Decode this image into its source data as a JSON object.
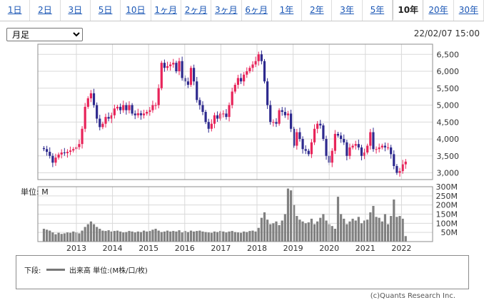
{
  "tabs": [
    {
      "label": "1日",
      "active": false
    },
    {
      "label": "2日",
      "active": false
    },
    {
      "label": "3日",
      "active": false
    },
    {
      "label": "5日",
      "active": false
    },
    {
      "label": "10日",
      "active": false
    },
    {
      "label": "1ヶ月",
      "active": false
    },
    {
      "label": "2ヶ月",
      "active": false
    },
    {
      "label": "3ヶ月",
      "active": false
    },
    {
      "label": "6ヶ月",
      "active": false
    },
    {
      "label": "1年",
      "active": false
    },
    {
      "label": "2年",
      "active": false
    },
    {
      "label": "3年",
      "active": false
    },
    {
      "label": "5年",
      "active": false
    },
    {
      "label": "10年",
      "active": true
    },
    {
      "label": "20年",
      "active": false
    },
    {
      "label": "30年",
      "active": false
    }
  ],
  "period_select": {
    "value": "月足"
  },
  "timestamp": "22/02/07 15:00",
  "volume_unit_label": "単位: M",
  "legend": {
    "title": "下段:",
    "label": "出来高 単位:(M株/口/枚)"
  },
  "copyright": "(c)Quants Research Inc.",
  "colors": {
    "up": "#e8245a",
    "down": "#2e2a8e",
    "volume": "#808080",
    "grid": "#d9d9d9"
  },
  "chart_data": [
    {
      "type": "candlestick",
      "ylim": [
        2800,
        6800
      ],
      "y_ticks": [
        3000,
        3500,
        4000,
        4500,
        5000,
        5500,
        6000,
        6500
      ],
      "y_tick_labels": [
        "3,000",
        "3,500",
        "4,000",
        "4,500",
        "5,000",
        "5,500",
        "6,000",
        "6,500"
      ],
      "x_tick_labels": [
        "2013",
        "2014",
        "2015",
        "2016",
        "2017",
        "2018",
        "2019",
        "2020",
        "2021",
        "2022"
      ],
      "grid": true,
      "close": [
        3700,
        3620,
        3500,
        3300,
        3450,
        3540,
        3600,
        3580,
        3620,
        3660,
        3700,
        3760,
        3850,
        4300,
        4950,
        5200,
        5350,
        5000,
        4600,
        4350,
        4450,
        4650,
        4600,
        4700,
        4900,
        4950,
        4850,
        5000,
        4850,
        5000,
        4750,
        4700,
        4760,
        4700,
        4750,
        4800,
        4850,
        5000,
        5000,
        5500,
        6250,
        6100,
        6150,
        6200,
        6250,
        6000,
        6300,
        5800,
        5700,
        5600,
        6100,
        5700,
        5150,
        5000,
        4800,
        4500,
        4300,
        4450,
        4700,
        4600,
        4750,
        4750,
        4650,
        5000,
        5400,
        5600,
        5800,
        5700,
        5900,
        6000,
        6100,
        6200,
        6300,
        6500,
        6300,
        5700,
        5000,
        4500,
        4500,
        4450,
        4850,
        4800,
        4700,
        4750,
        4300,
        3800,
        4200,
        4000,
        3700,
        3650,
        3550,
        3900,
        4300,
        4450,
        4400,
        4000,
        3500,
        3300,
        3650,
        4150,
        4100,
        4000,
        3900,
        3500,
        3750,
        3800,
        3850,
        3750,
        3500,
        3600,
        3800,
        4200,
        3700,
        3700,
        3750,
        3800,
        3750,
        3750,
        3550,
        3200,
        3000,
        3050,
        3250,
        3330
      ]
    },
    {
      "type": "bar",
      "name": "出来高",
      "ylim": [
        0,
        300
      ],
      "y_ticks": [
        50,
        100,
        150,
        200,
        250,
        300
      ],
      "y_tick_labels": [
        "50M",
        "100M",
        "150M",
        "200M",
        "250M",
        "300M"
      ],
      "values": [
        70,
        65,
        60,
        50,
        40,
        48,
        42,
        45,
        50,
        48,
        55,
        50,
        45,
        60,
        80,
        95,
        110,
        95,
        80,
        70,
        60,
        58,
        62,
        55,
        58,
        60,
        55,
        50,
        52,
        58,
        55,
        50,
        55,
        52,
        60,
        55,
        58,
        65,
        70,
        60,
        52,
        55,
        60,
        55,
        58,
        55,
        62,
        50,
        58,
        52,
        60,
        55,
        58,
        60,
        55,
        52,
        50,
        48,
        55,
        52,
        58,
        55,
        50,
        55,
        58,
        52,
        50,
        48,
        55,
        52,
        58,
        60,
        55,
        75,
        130,
        160,
        120,
        95,
        100,
        110,
        90,
        115,
        150,
        290,
        280,
        200,
        140,
        120,
        110,
        100,
        105,
        125,
        95,
        110,
        130,
        150,
        115,
        95,
        85,
        70,
        245,
        150,
        125,
        95,
        110,
        125,
        115,
        135,
        100,
        115,
        120,
        160,
        195,
        135,
        130,
        110,
        150,
        95,
        140,
        230,
        135,
        140,
        125,
        30
      ]
    }
  ]
}
